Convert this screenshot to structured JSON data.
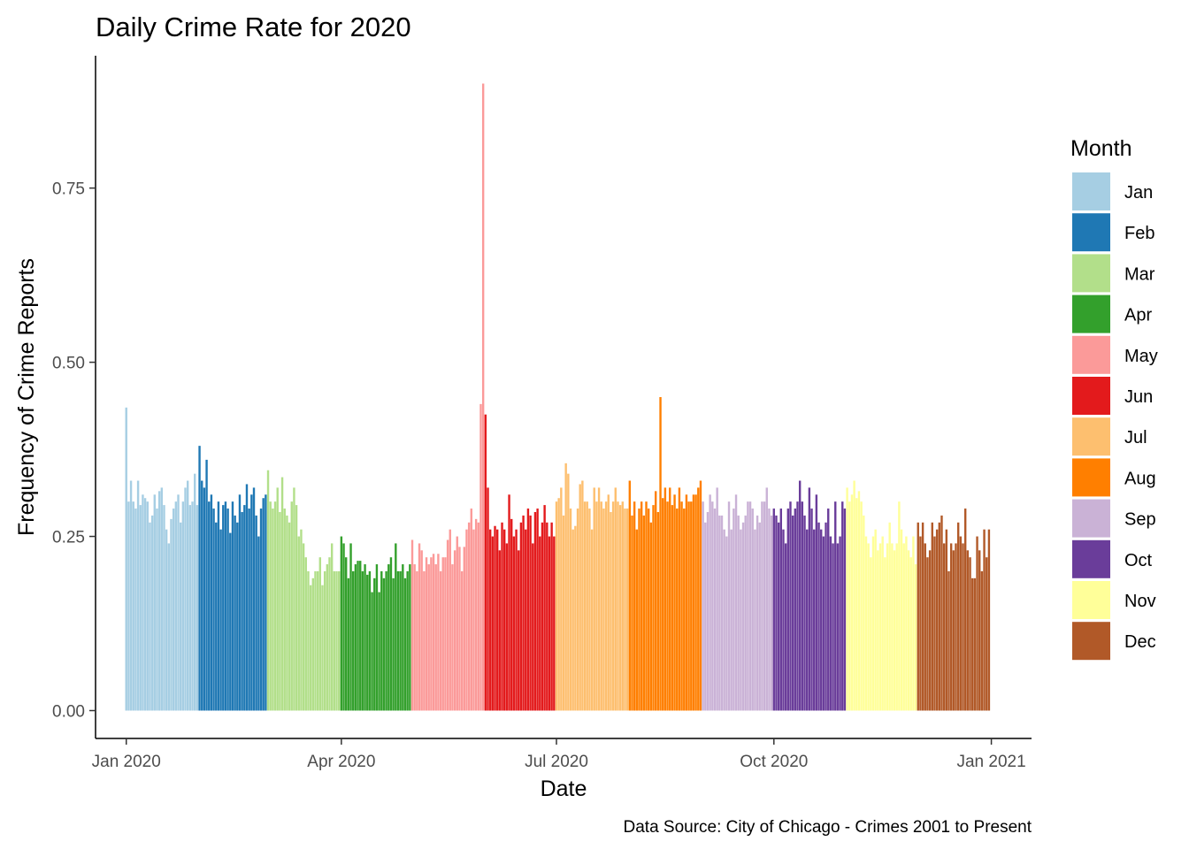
{
  "chart_data": {
    "type": "bar",
    "title": "Daily Crime Rate for 2020",
    "xlabel": "Date",
    "ylabel": "Frequency of Crime Reports",
    "caption": "Data Source: City of Chicago - Crimes 2001 to Present",
    "x_ticks": [
      {
        "date": "2020-01-01",
        "label": "Jan 2020"
      },
      {
        "date": "2020-04-01",
        "label": "Apr 2020"
      },
      {
        "date": "2020-07-01",
        "label": "Jul 2020"
      },
      {
        "date": "2020-10-01",
        "label": "Oct 2020"
      },
      {
        "date": "2021-01-01",
        "label": "Jan 2021"
      }
    ],
    "y_ticks": [
      0,
      0.25,
      0.5,
      0.75
    ],
    "y_tick_labels": [
      "0.00",
      "0.25",
      "0.50",
      "0.75"
    ],
    "ylim": [
      -0.04,
      0.94
    ],
    "xlim": [
      "2019-12-19",
      "2021-01-18"
    ],
    "grid": false,
    "legend": {
      "title": "Month",
      "position": "right",
      "entries": [
        {
          "label": "Jan",
          "color": "#a6cee3"
        },
        {
          "label": "Feb",
          "color": "#1f78b4"
        },
        {
          "label": "Mar",
          "color": "#b2df8a"
        },
        {
          "label": "Apr",
          "color": "#33a02c"
        },
        {
          "label": "May",
          "color": "#fb9a99"
        },
        {
          "label": "Jun",
          "color": "#e31a1c"
        },
        {
          "label": "Jul",
          "color": "#fdbf6f"
        },
        {
          "label": "Aug",
          "color": "#ff7f00"
        },
        {
          "label": "Sep",
          "color": "#cab2d6"
        },
        {
          "label": "Oct",
          "color": "#6a3d9a"
        },
        {
          "label": "Nov",
          "color": "#ffff99"
        },
        {
          "label": "Dec",
          "color": "#b15928"
        }
      ]
    },
    "series": [
      {
        "month": "Jan",
        "start_date": "2020-01-01",
        "values": [
          0.435,
          0.3,
          0.33,
          0.3,
          0.29,
          0.33,
          0.295,
          0.31,
          0.305,
          0.3,
          0.27,
          0.28,
          0.31,
          0.29,
          0.315,
          0.32,
          0.295,
          0.26,
          0.24,
          0.275,
          0.29,
          0.3,
          0.31,
          0.27,
          0.3,
          0.32,
          0.33,
          0.295,
          0.3,
          0.34,
          0.295
        ]
      },
      {
        "month": "Feb",
        "start_date": "2020-02-01",
        "values": [
          0.38,
          0.33,
          0.32,
          0.36,
          0.3,
          0.31,
          0.29,
          0.27,
          0.3,
          0.26,
          0.295,
          0.3,
          0.29,
          0.255,
          0.3,
          0.28,
          0.27,
          0.31,
          0.285,
          0.295,
          0.325,
          0.29,
          0.31,
          0.32,
          0.28,
          0.25,
          0.29,
          0.305,
          0.31
        ]
      },
      {
        "month": "Mar",
        "start_date": "2020-03-01",
        "values": [
          0.345,
          0.3,
          0.29,
          0.3,
          0.32,
          0.285,
          0.335,
          0.29,
          0.28,
          0.27,
          0.3,
          0.32,
          0.295,
          0.25,
          0.26,
          0.24,
          0.22,
          0.2,
          0.18,
          0.19,
          0.2,
          0.2,
          0.22,
          0.18,
          0.2,
          0.21,
          0.22,
          0.24,
          0.2,
          0.2,
          0.2
        ]
      },
      {
        "month": "Apr",
        "start_date": "2020-04-01",
        "values": [
          0.25,
          0.24,
          0.22,
          0.19,
          0.24,
          0.2,
          0.21,
          0.215,
          0.215,
          0.2,
          0.21,
          0.195,
          0.2,
          0.17,
          0.19,
          0.21,
          0.17,
          0.2,
          0.19,
          0.2,
          0.21,
          0.22,
          0.19,
          0.24,
          0.2,
          0.2,
          0.21,
          0.19,
          0.2,
          0.21
        ]
      },
      {
        "month": "May",
        "start_date": "2020-05-01",
        "values": [
          0.245,
          0.21,
          0.2,
          0.24,
          0.23,
          0.2,
          0.22,
          0.21,
          0.22,
          0.225,
          0.21,
          0.225,
          0.2,
          0.22,
          0.22,
          0.245,
          0.26,
          0.21,
          0.23,
          0.25,
          0.235,
          0.2,
          0.235,
          0.26,
          0.27,
          0.29,
          0.26,
          0.275,
          0.27,
          0.44,
          0.9
        ]
      },
      {
        "month": "Jun",
        "start_date": "2020-06-01",
        "values": [
          0.425,
          0.32,
          0.26,
          0.25,
          0.265,
          0.26,
          0.23,
          0.27,
          0.26,
          0.24,
          0.31,
          0.275,
          0.25,
          0.26,
          0.23,
          0.27,
          0.28,
          0.26,
          0.29,
          0.28,
          0.24,
          0.285,
          0.29,
          0.25,
          0.27,
          0.295,
          0.27,
          0.25,
          0.27,
          0.25
        ]
      },
      {
        "month": "Jul",
        "start_date": "2020-07-01",
        "values": [
          0.3,
          0.305,
          0.32,
          0.28,
          0.355,
          0.34,
          0.29,
          0.26,
          0.265,
          0.29,
          0.325,
          0.33,
          0.3,
          0.3,
          0.29,
          0.26,
          0.32,
          0.3,
          0.32,
          0.3,
          0.29,
          0.3,
          0.31,
          0.285,
          0.3,
          0.32,
          0.3,
          0.295,
          0.3,
          0.29,
          0.29
        ]
      },
      {
        "month": "Aug",
        "start_date": "2020-08-01",
        "values": [
          0.33,
          0.28,
          0.3,
          0.26,
          0.29,
          0.3,
          0.28,
          0.3,
          0.29,
          0.27,
          0.295,
          0.315,
          0.285,
          0.45,
          0.305,
          0.32,
          0.3,
          0.32,
          0.295,
          0.31,
          0.29,
          0.32,
          0.3,
          0.29,
          0.31,
          0.3,
          0.3,
          0.31,
          0.31,
          0.32,
          0.33
        ]
      },
      {
        "month": "Sep",
        "start_date": "2020-09-01",
        "values": [
          0.3,
          0.27,
          0.285,
          0.31,
          0.3,
          0.29,
          0.32,
          0.28,
          0.28,
          0.26,
          0.25,
          0.3,
          0.26,
          0.29,
          0.31,
          0.28,
          0.26,
          0.27,
          0.28,
          0.3,
          0.3,
          0.29,
          0.26,
          0.28,
          0.27,
          0.3,
          0.3,
          0.32,
          0.29,
          0.28
        ]
      },
      {
        "month": "Oct",
        "start_date": "2020-10-01",
        "values": [
          0.29,
          0.28,
          0.27,
          0.29,
          0.26,
          0.24,
          0.29,
          0.3,
          0.28,
          0.29,
          0.3,
          0.33,
          0.3,
          0.28,
          0.26,
          0.32,
          0.29,
          0.26,
          0.31,
          0.27,
          0.26,
          0.25,
          0.27,
          0.29,
          0.25,
          0.24,
          0.3,
          0.24,
          0.25,
          0.3,
          0.29
        ]
      },
      {
        "month": "Nov",
        "start_date": "2020-11-01",
        "values": [
          0.32,
          0.3,
          0.31,
          0.33,
          0.305,
          0.315,
          0.3,
          0.28,
          0.25,
          0.24,
          0.22,
          0.25,
          0.26,
          0.23,
          0.24,
          0.25,
          0.22,
          0.24,
          0.27,
          0.24,
          0.23,
          0.24,
          0.3,
          0.26,
          0.24,
          0.25,
          0.23,
          0.22,
          0.25,
          0.21
        ]
      },
      {
        "month": "Dec",
        "start_date": "2020-12-01",
        "values": [
          0.27,
          0.25,
          0.27,
          0.24,
          0.22,
          0.23,
          0.27,
          0.25,
          0.26,
          0.27,
          0.28,
          0.24,
          0.26,
          0.2,
          0.24,
          0.23,
          0.24,
          0.27,
          0.25,
          0.24,
          0.29,
          0.23,
          0.22,
          0.19,
          0.19,
          0.25,
          0.23,
          0.2,
          0.26,
          0.22,
          0.26
        ]
      }
    ]
  }
}
